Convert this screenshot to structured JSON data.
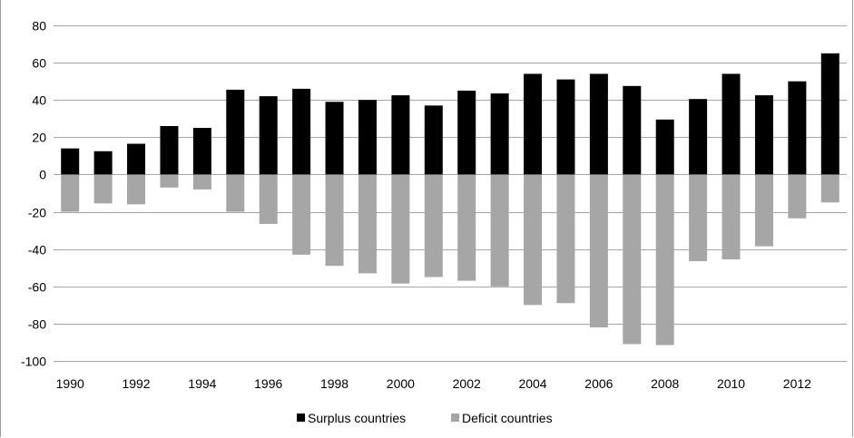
{
  "chart_data": {
    "type": "bar",
    "title": "",
    "xlabel": "",
    "ylabel": "",
    "ylim": [
      -100,
      80
    ],
    "ytick_step": 20,
    "grid": "horizontal",
    "legend_position": "bottom",
    "categories": [
      "1990",
      "1991",
      "1992",
      "1993",
      "1994",
      "1995",
      "1996",
      "1997",
      "1998",
      "1999",
      "2000",
      "2001",
      "2002",
      "2003",
      "2004",
      "2005",
      "2006",
      "2007",
      "2008",
      "2009",
      "2010",
      "2011",
      "2012",
      "2013"
    ],
    "x_tick_labels": [
      "1990",
      "1992",
      "1994",
      "1996",
      "1998",
      "2000",
      "2002",
      "2004",
      "2006",
      "2008",
      "2010",
      "2012"
    ],
    "series": [
      {
        "name": "Surplus countries",
        "color": "#000000",
        "values": [
          14,
          12.5,
          16.5,
          26,
          25,
          45.5,
          42,
          46,
          39,
          40,
          42.5,
          37,
          45,
          43.5,
          54,
          51,
          54,
          47.5,
          29.5,
          40.5,
          54,
          42.5,
          50,
          65
        ]
      },
      {
        "name": "Deficit countries",
        "color": "#a6a6a6",
        "values": [
          -20,
          -15.5,
          -16,
          -7,
          -8,
          -20,
          -26.5,
          -43,
          -49,
          -53,
          -58.5,
          -55,
          -57,
          -60,
          -70,
          -69,
          -82,
          -91,
          -91.5,
          -46.5,
          -45.5,
          -38.5,
          -23.5,
          -15
        ]
      }
    ]
  }
}
